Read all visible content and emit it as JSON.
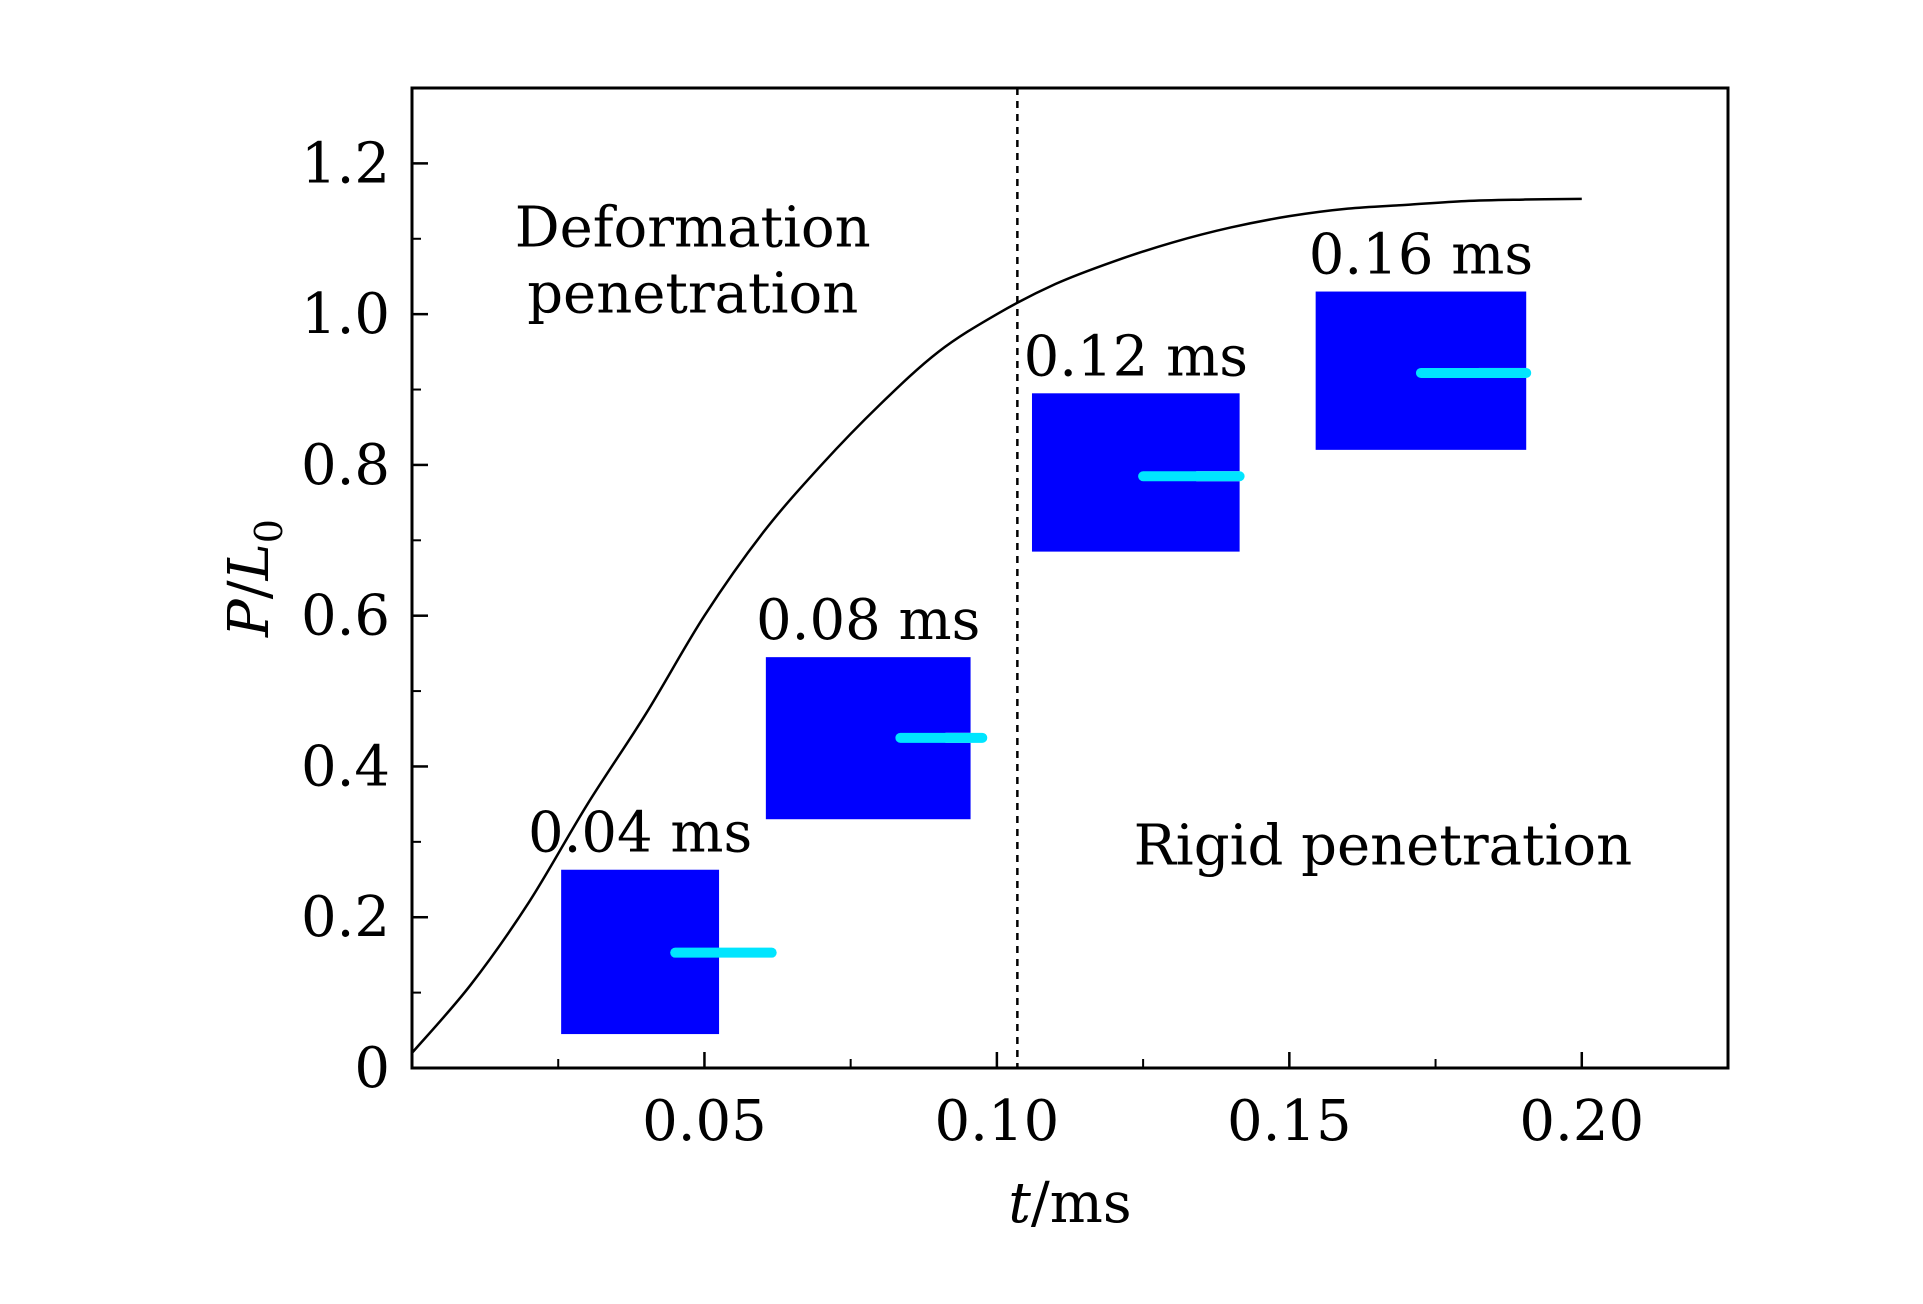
{
  "chart_data": {
    "type": "line",
    "title": "",
    "xlabel_var": "t",
    "xlabel_unit": "/ms",
    "ylabel_var": "P",
    "ylabel_sep": "/",
    "ylabel_var2": "L",
    "ylabel_sub": "0",
    "xlim": [
      0,
      0.225
    ],
    "ylim": [
      0,
      1.3
    ],
    "x_ticks": [
      0.05,
      0.1,
      0.15,
      0.2
    ],
    "x_tick_labels": [
      "0.05",
      "0.10",
      "0.15",
      "0.20"
    ],
    "x_minor_ticks": [
      0.025,
      0.075,
      0.125,
      0.175
    ],
    "y_ticks": [
      0,
      0.2,
      0.4,
      0.6,
      0.8,
      1.0,
      1.2
    ],
    "y_tick_labels": [
      "0",
      "0.2",
      "0.4",
      "0.6",
      "0.8",
      "1.0",
      "1.2"
    ],
    "y_minor_ticks": [
      0.1,
      0.3,
      0.5,
      0.7,
      0.9,
      1.1
    ],
    "series": [
      {
        "name": "P/L0",
        "color": "#000000",
        "x": [
          0,
          0.01,
          0.02,
          0.03,
          0.04,
          0.05,
          0.06,
          0.07,
          0.08,
          0.09,
          0.1,
          0.11,
          0.12,
          0.13,
          0.14,
          0.15,
          0.16,
          0.17,
          0.18,
          0.19,
          0.2
        ],
        "y": [
          0.02,
          0.11,
          0.22,
          0.35,
          0.47,
          0.6,
          0.71,
          0.8,
          0.88,
          0.95,
          1.0,
          1.04,
          1.07,
          1.095,
          1.115,
          1.13,
          1.14,
          1.145,
          1.15,
          1.152,
          1.153
        ]
      }
    ],
    "transition_line": {
      "x": 0.1035,
      "style": "dashed",
      "color": "#000000"
    },
    "regions": [
      {
        "lines": [
          "Deformation",
          "penetration"
        ],
        "x": 0.048,
        "y": 1.09
      },
      {
        "lines": [
          "Rigid penetration"
        ],
        "x": 0.166,
        "y": 0.27
      }
    ],
    "snapshots": [
      {
        "label": "0.04 ms",
        "x0": 0.0255,
        "x1": 0.0525,
        "y0": 0.045,
        "y1": 0.263,
        "rod_y": 0.153,
        "rod_x0": 0.045,
        "rod_x1": 0.0615
      },
      {
        "label": "0.08 ms",
        "x0": 0.0605,
        "x1": 0.0955,
        "y0": 0.33,
        "y1": 0.545,
        "rod_y": 0.438,
        "rod_x0": 0.0835,
        "rod_x1": 0.0975
      },
      {
        "label": "0.12 ms",
        "x0": 0.106,
        "x1": 0.1415,
        "y0": 0.685,
        "y1": 0.895,
        "rod_y": 0.785,
        "rod_x0": 0.125,
        "rod_x1": 0.1415
      },
      {
        "label": "0.16 ms",
        "x0": 0.1545,
        "x1": 0.1905,
        "y0": 0.82,
        "y1": 1.03,
        "rod_y": 0.922,
        "rod_x0": 0.1725,
        "rod_x1": 0.1905
      }
    ],
    "colors": {
      "target": "#0000FF",
      "projectile": "#00E5FF",
      "crater": "#FFFFFF",
      "axis": "#000000"
    }
  }
}
